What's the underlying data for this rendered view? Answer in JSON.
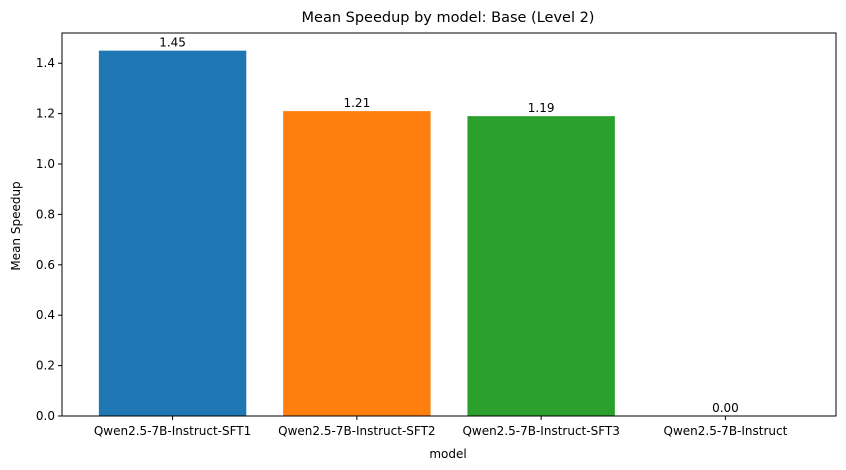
{
  "chart_data": {
    "type": "bar",
    "title": "Mean Speedup by model: Base (Level 2)",
    "xlabel": "model",
    "ylabel": "Mean Speedup",
    "categories": [
      "Qwen2.5-7B-Instruct-SFT1",
      "Qwen2.5-7B-Instruct-SFT2",
      "Qwen2.5-7B-Instruct-SFT3",
      "Qwen2.5-7B-Instruct"
    ],
    "values": [
      1.45,
      1.21,
      1.19,
      0.0
    ],
    "value_labels": [
      "1.45",
      "1.21",
      "1.19",
      "0.00"
    ],
    "colors": [
      "#1f77b4",
      "#ff7f0e",
      "#2ca02c",
      "#d62728"
    ],
    "ylim": [
      0,
      1.52
    ],
    "yticks": [
      0.0,
      0.2,
      0.4,
      0.6,
      0.8,
      1.0,
      1.2,
      1.4
    ],
    "ytick_labels": [
      "0.0",
      "0.2",
      "0.4",
      "0.6",
      "0.8",
      "1.0",
      "1.2",
      "1.4"
    ],
    "grid": false,
    "legend": "none"
  }
}
